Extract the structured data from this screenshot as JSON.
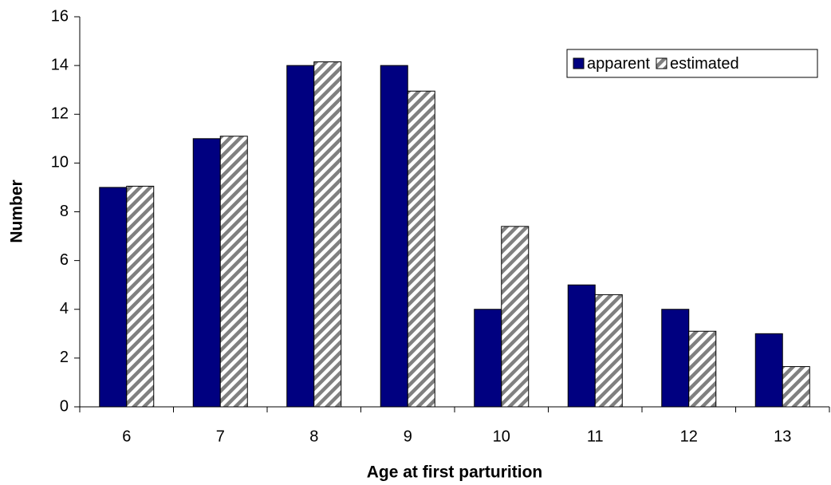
{
  "chart_data": {
    "type": "bar",
    "x_label": "Age at first parturition",
    "y_label": "Number",
    "categories": [
      "6",
      "7",
      "8",
      "9",
      "10",
      "11",
      "12",
      "13"
    ],
    "series": [
      {
        "name": "apparent",
        "color": "#000080",
        "values": [
          9,
          11,
          14,
          14,
          4,
          5,
          4,
          3
        ]
      },
      {
        "name": "estimated",
        "color": "#808080",
        "pattern": "hatch",
        "values": [
          9.05,
          11.1,
          14.15,
          12.95,
          7.4,
          4.6,
          3.1,
          1.65
        ]
      }
    ],
    "ylim": [
      0,
      16
    ],
    "yticks": [
      0,
      2,
      4,
      6,
      8,
      10,
      12,
      14,
      16
    ],
    "grid": false,
    "legend": "upper right"
  }
}
